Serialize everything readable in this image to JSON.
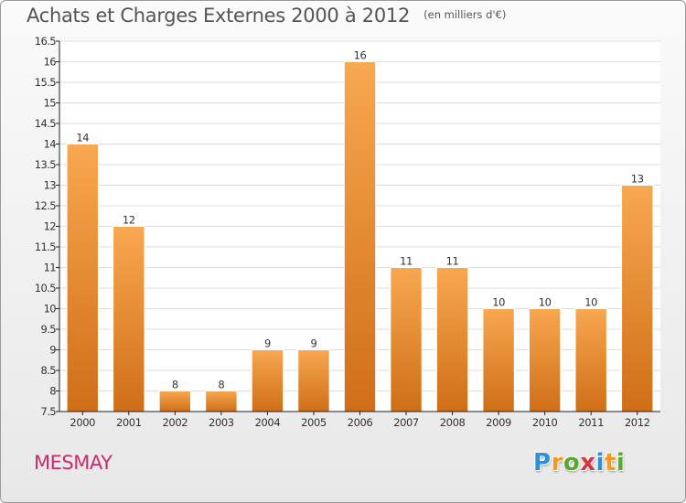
{
  "header": {
    "title": "Achats et Charges Externes 2000 à 2012",
    "unit": "(en milliers d'€)"
  },
  "footer": {
    "commune": "MESMAY",
    "logo": {
      "letters": [
        "P",
        "r",
        "o",
        "x",
        "i",
        "t",
        "i"
      ],
      "colors": [
        "#2f8fd8",
        "#f29a1f",
        "#5aa832",
        "#d8343f",
        "#2f8fd8",
        "#f29a1f",
        "#5aa832"
      ]
    }
  },
  "chart_data": {
    "type": "bar",
    "categories": [
      "2000",
      "2001",
      "2002",
      "2003",
      "2004",
      "2005",
      "2006",
      "2007",
      "2008",
      "2009",
      "2010",
      "2011",
      "2012"
    ],
    "values": [
      14,
      12,
      8,
      8,
      9,
      9,
      16,
      11,
      11,
      10,
      10,
      10,
      13
    ],
    "value_labels": [
      "14",
      "12",
      "8",
      "8",
      "9",
      "9",
      "16",
      "11",
      "11",
      "10",
      "10",
      "10",
      "13"
    ],
    "ylim": [
      7.5,
      16.5
    ],
    "yticks": [
      7.5,
      8,
      8.5,
      9,
      9.5,
      10,
      10.5,
      11,
      11.5,
      12,
      12.5,
      13,
      13.5,
      14,
      14.5,
      15,
      15.5,
      16,
      16.5
    ],
    "ytick_labels": [
      "7.5",
      "8",
      "8.5",
      "9",
      "9.5",
      "10",
      "10.5",
      "11",
      "11.5",
      "12",
      "12.5",
      "13",
      "13.5",
      "14",
      "14.5",
      "15",
      "15.5",
      "16",
      "16.5"
    ],
    "grid": true,
    "colors": {
      "bar_light": "#f8a850",
      "bar_dark": "#cf6e18",
      "grid": "#dddddd",
      "axis": "#222222",
      "plot_bg": "#ffffff"
    }
  }
}
